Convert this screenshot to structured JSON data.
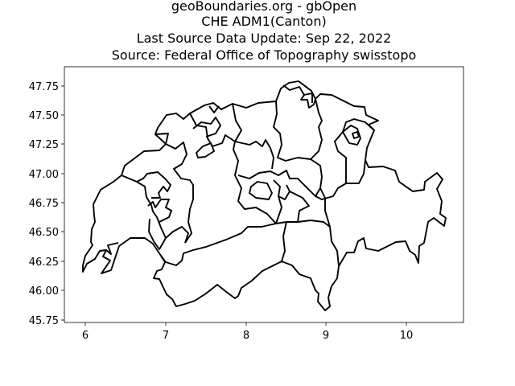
{
  "title_lines": [
    "geoBoundaries.org - gbOpen",
    "CHE ADM1(Canton)",
    "Last Source Data Update: Sep 22, 2022",
    "Source: Federal Office of Topography swisstopo"
  ],
  "chart_data": {
    "type": "map",
    "xlim": [
      5.75,
      10.7
    ],
    "ylim": [
      45.74,
      47.9
    ],
    "xticks": [
      "6",
      "7",
      "8",
      "9",
      "10"
    ],
    "yticks": [
      "45.75",
      "46.00",
      "46.25",
      "46.50",
      "46.75",
      "47.00",
      "47.25",
      "47.50",
      "47.75"
    ],
    "grid": false,
    "colors": {
      "boundary": "#000000",
      "background": "#ffffff"
    }
  }
}
